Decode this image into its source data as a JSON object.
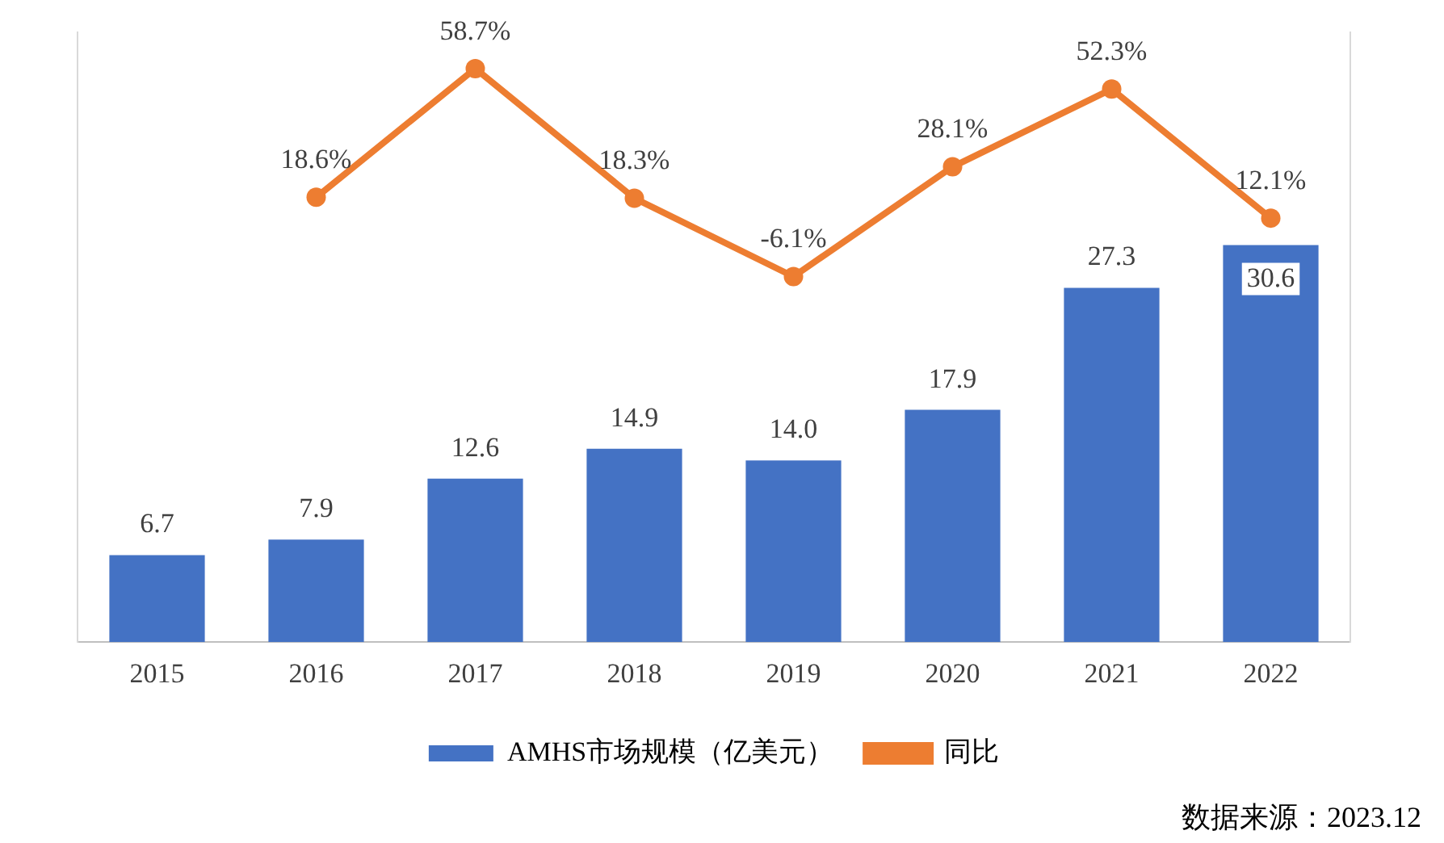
{
  "chart_data": {
    "type": "bar",
    "categories": [
      "2015",
      "2016",
      "2017",
      "2018",
      "2019",
      "2020",
      "2021",
      "2022"
    ],
    "series": [
      {
        "name": "AMHS市场规模（亿美元）",
        "color": "#4472c4",
        "values": [
          6.7,
          7.9,
          12.6,
          14.9,
          14.0,
          17.9,
          27.3,
          30.6
        ],
        "value_labels": [
          "6.7",
          "7.9",
          "12.6",
          "14.9",
          "14.0",
          "17.9",
          "27.3",
          "30.6"
        ]
      },
      {
        "name": "同比",
        "type": "line",
        "axis": "y2",
        "color": "#ed7d31",
        "values": [
          null,
          18.6,
          58.7,
          18.3,
          -6.1,
          28.1,
          52.3,
          12.1
        ],
        "value_labels": [
          null,
          "18.6%",
          "58.7%",
          "18.3%",
          "-6.1%",
          "28.1%",
          "52.3%",
          "12.1%"
        ]
      }
    ],
    "ylim": [
      0,
      47
    ],
    "y2lim": [
      -120,
      70
    ],
    "tick_labels": "x",
    "legend": "bottom",
    "grid": false,
    "marker": "circle",
    "annotations": [
      "数据来源：2023.12"
    ]
  }
}
